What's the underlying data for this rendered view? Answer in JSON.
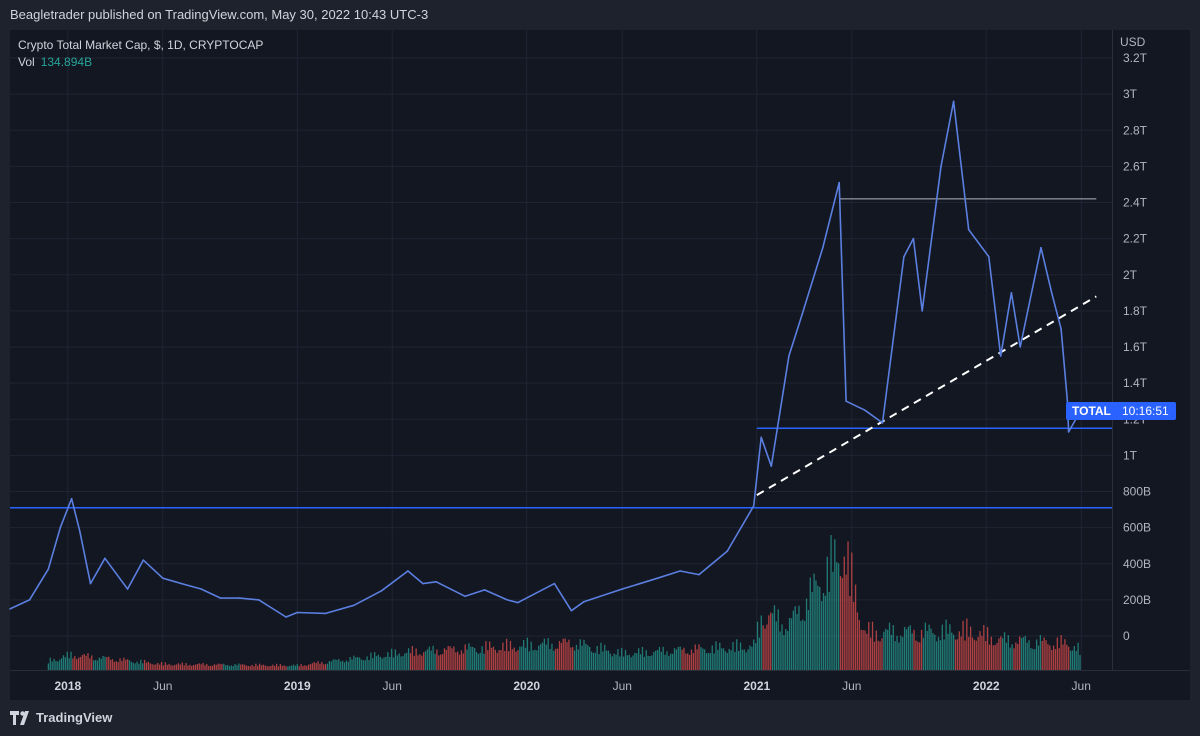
{
  "header": {
    "text": "Beagletrader published on TradingView.com, May 30, 2022 10:43 UTC-3"
  },
  "legend": {
    "symbol_line": "Crypto Total Market Cap, $, 1D, CRYPTOCAP",
    "vol_label": "Vol",
    "vol_value": "134.894B"
  },
  "price_scale": {
    "currency": "USD"
  },
  "badge": {
    "symbol": "TOTAL",
    "countdown": "10:16:51",
    "color": "#2962ff"
  },
  "footer": {
    "brand": "TradingView"
  },
  "colors": {
    "line": "#5b7fe0",
    "up": "#26a69a",
    "down": "#ef5350",
    "horizontal_blue": "#2962ff",
    "resistance": "#b2b5be",
    "trend": "#ffffff"
  },
  "chart_data": {
    "type": "line",
    "series": [
      {
        "name": "Crypto Total Market Cap",
        "unit": "USD",
        "points": [
          [
            "2017-10-01",
            150
          ],
          [
            "2017-11-01",
            200
          ],
          [
            "2017-12-01",
            370
          ],
          [
            "2017-12-20",
            600
          ],
          [
            "2018-01-07",
            760
          ],
          [
            "2018-01-20",
            580
          ],
          [
            "2018-02-06",
            290
          ],
          [
            "2018-03-01",
            430
          ],
          [
            "2018-04-06",
            260
          ],
          [
            "2018-05-01",
            420
          ],
          [
            "2018-06-01",
            320
          ],
          [
            "2018-07-01",
            290
          ],
          [
            "2018-08-01",
            260
          ],
          [
            "2018-09-01",
            210
          ],
          [
            "2018-10-01",
            210
          ],
          [
            "2018-11-01",
            200
          ],
          [
            "2018-12-14",
            105
          ],
          [
            "2019-01-01",
            130
          ],
          [
            "2019-02-15",
            125
          ],
          [
            "2019-04-01",
            170
          ],
          [
            "2019-05-15",
            250
          ],
          [
            "2019-06-26",
            360
          ],
          [
            "2019-07-20",
            290
          ],
          [
            "2019-08-10",
            300
          ],
          [
            "2019-09-25",
            220
          ],
          [
            "2019-10-26",
            255
          ],
          [
            "2019-12-01",
            200
          ],
          [
            "2019-12-18",
            185
          ],
          [
            "2020-02-14",
            290
          ],
          [
            "2020-03-12",
            140
          ],
          [
            "2020-04-01",
            190
          ],
          [
            "2020-06-01",
            260
          ],
          [
            "2020-07-27",
            320
          ],
          [
            "2020-09-01",
            360
          ],
          [
            "2020-10-01",
            340
          ],
          [
            "2020-11-15",
            470
          ],
          [
            "2020-12-27",
            720
          ],
          [
            "2021-01-08",
            1100
          ],
          [
            "2021-01-24",
            940
          ],
          [
            "2021-02-21",
            1550
          ],
          [
            "2021-03-14",
            1780
          ],
          [
            "2021-04-16",
            2150
          ],
          [
            "2021-05-12",
            2510
          ],
          [
            "2021-05-23",
            1300
          ],
          [
            "2021-06-22",
            1250
          ],
          [
            "2021-07-20",
            1180
          ],
          [
            "2021-08-23",
            2100
          ],
          [
            "2021-09-07",
            2200
          ],
          [
            "2021-09-21",
            1800
          ],
          [
            "2021-10-21",
            2600
          ],
          [
            "2021-11-10",
            2960
          ],
          [
            "2021-12-04",
            2250
          ],
          [
            "2022-01-05",
            2100
          ],
          [
            "2022-01-24",
            1550
          ],
          [
            "2022-02-10",
            1900
          ],
          [
            "2022-02-24",
            1600
          ],
          [
            "2022-03-29",
            2150
          ],
          [
            "2022-04-15",
            1900
          ],
          [
            "2022-04-30",
            1700
          ],
          [
            "2022-05-10",
            1300
          ],
          [
            "2022-05-12",
            1130
          ],
          [
            "2022-05-30",
            1240
          ]
        ]
      },
      {
        "name": "Vol",
        "unit": "USD",
        "points": [
          [
            "2017-12-01",
            60
          ],
          [
            "2018-01-07",
            100
          ],
          [
            "2018-06-01",
            40
          ],
          [
            "2019-01-01",
            30
          ],
          [
            "2019-06-26",
            120
          ],
          [
            "2020-03-12",
            180
          ],
          [
            "2020-06-01",
            110
          ],
          [
            "2020-12-27",
            160
          ],
          [
            "2021-01-11",
            380
          ],
          [
            "2021-02-21",
            300
          ],
          [
            "2021-05-19",
            800
          ],
          [
            "2021-06-22",
            250
          ],
          [
            "2021-09-07",
            250
          ],
          [
            "2021-12-04",
            260
          ],
          [
            "2022-01-24",
            200
          ],
          [
            "2022-05-12",
            175
          ],
          [
            "2022-05-30",
            134.894
          ]
        ]
      }
    ],
    "y_unit": "B",
    "ylim": [
      0,
      3200
    ],
    "y_ticks": [
      {
        "value": 0,
        "label": "0"
      },
      {
        "value": 200,
        "label": "200B"
      },
      {
        "value": 400,
        "label": "400B"
      },
      {
        "value": 600,
        "label": "600B"
      },
      {
        "value": 800,
        "label": "800B"
      },
      {
        "value": 1000,
        "label": "1T"
      },
      {
        "value": 1200,
        "label": "1.2T"
      },
      {
        "value": 1400,
        "label": "1.4T"
      },
      {
        "value": 1600,
        "label": "1.6T"
      },
      {
        "value": 1800,
        "label": "1.8T"
      },
      {
        "value": 2000,
        "label": "2T"
      },
      {
        "value": 2200,
        "label": "2.2T"
      },
      {
        "value": 2400,
        "label": "2.4T"
      },
      {
        "value": 2600,
        "label": "2.6T"
      },
      {
        "value": 2800,
        "label": "2.8T"
      },
      {
        "value": 3000,
        "label": "3T"
      },
      {
        "value": 3200,
        "label": "3.2T"
      }
    ],
    "xlim": [
      "2017-10-01",
      "2022-07-20"
    ],
    "x_ticks": [
      {
        "date": "2018-01-01",
        "label": "2018",
        "year": true
      },
      {
        "date": "2018-06-01",
        "label": "Jun"
      },
      {
        "date": "2019-01-01",
        "label": "2019",
        "year": true
      },
      {
        "date": "2019-06-01",
        "label": "Jun"
      },
      {
        "date": "2020-01-01",
        "label": "2020",
        "year": true
      },
      {
        "date": "2020-06-01",
        "label": "Jun"
      },
      {
        "date": "2021-01-01",
        "label": "2021",
        "year": true
      },
      {
        "date": "2021-06-01",
        "label": "Jun"
      },
      {
        "date": "2022-01-01",
        "label": "2022",
        "year": true
      },
      {
        "date": "2022-06-01",
        "label": "Jun"
      }
    ],
    "annotations": [
      {
        "type": "horizontal",
        "value": 710,
        "color": "#2962ff",
        "from": "2017-10-01",
        "to": "2022-07-20"
      },
      {
        "type": "horizontal",
        "value": 1150,
        "color": "#2962ff",
        "from": "2021-01-01",
        "to": "2022-07-20"
      },
      {
        "type": "horizontal",
        "value": 2420,
        "color": "#b2b5be",
        "from": "2021-05-12",
        "to": "2022-06-25"
      },
      {
        "type": "trendline",
        "dashed": true,
        "color": "#ffffff",
        "from": [
          "2021-01-01",
          780
        ],
        "to": [
          "2022-06-25",
          1880
        ]
      }
    ],
    "grid": true,
    "legend": "top-left"
  }
}
